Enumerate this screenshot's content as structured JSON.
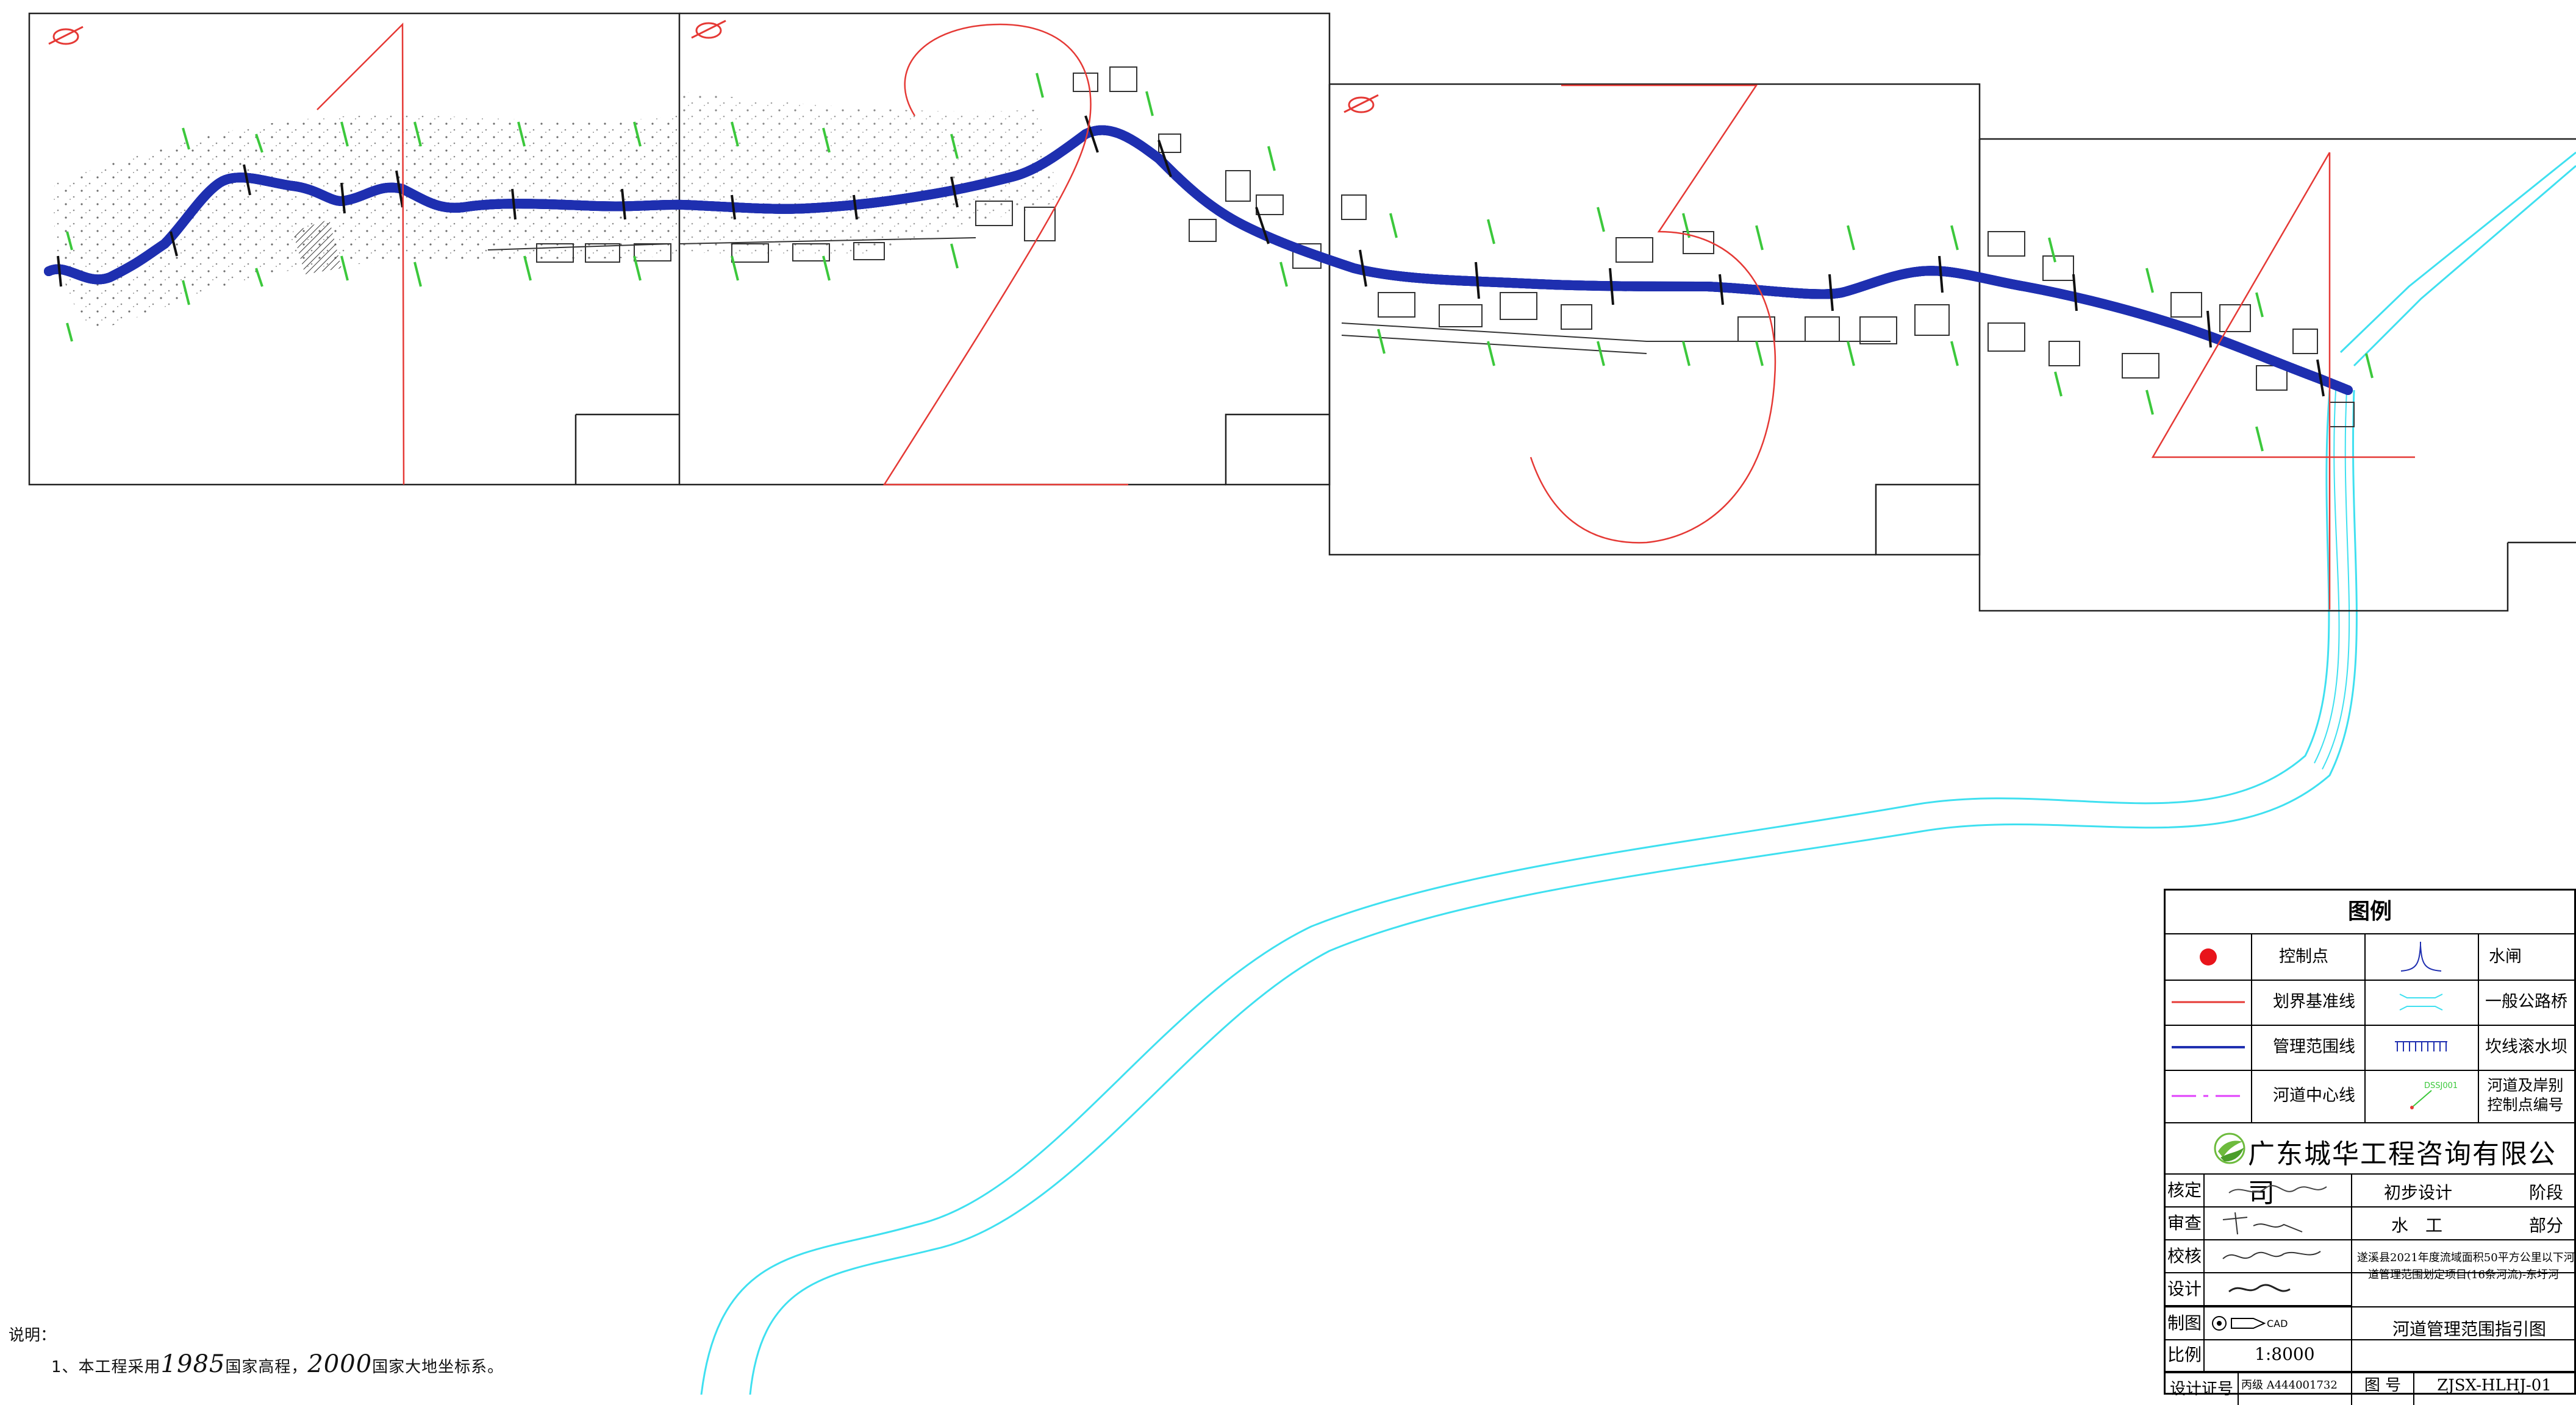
{
  "map": {
    "sheet_numbers": [
      "1",
      "2",
      "3",
      "4"
    ],
    "colors": {
      "boundary_red": "#e53935",
      "management_blue": "#1f2fb0",
      "centerline_magenta": "#e040fb",
      "river_cyan": "#3fe0f0",
      "control_green": "#3cc83c"
    }
  },
  "notes": {
    "heading": "说明：",
    "line_prefix": "1、本工程采用",
    "elev_year": "1985",
    "elev_text": "国家高程，",
    "coord_year": "2000",
    "coord_text": "国家大地坐标系。"
  },
  "legend": {
    "title": "图例",
    "items": [
      {
        "label": "控制点",
        "icon": "red-dot-icon"
      },
      {
        "label": "水闸",
        "icon": "sluice-gate-icon"
      },
      {
        "label": "划界基准线",
        "icon": "red-line-icon"
      },
      {
        "label": "一般公路桥",
        "icon": "highway-bridge-icon"
      },
      {
        "label": "管理范围线",
        "icon": "blue-line-icon"
      },
      {
        "label": "坎线滚水坝",
        "icon": "weir-icon"
      },
      {
        "label": "河道中心线",
        "icon": "magenta-dash-icon"
      },
      {
        "label_line1": "河道及岸别",
        "label_line2": "控制点编号",
        "icon": "control-point-number-icon",
        "sample_code": "DSSJ001"
      }
    ]
  },
  "title_block": {
    "company": "广东城华工程咨询有限公司",
    "rows": [
      {
        "label": "核定",
        "right_a": "初步设计",
        "right_b": "阶段"
      },
      {
        "label": "审查",
        "right_a": "水　工",
        "right_b": "部分"
      },
      {
        "label": "校核",
        "project_line1": "遂溪县2021年度流域面积50平方公里以下河",
        "project_line2": "道管理范围划定项目(16条河流)-东圩河"
      },
      {
        "label": "设计"
      },
      {
        "label": "制图",
        "drawing_tag": "CAD",
        "drawing_title": "河道管理范围指引图"
      },
      {
        "label": "比例",
        "scale": "1:8000"
      },
      {
        "label": "设计证号",
        "cert_grade": "丙级",
        "cert_no": "A444001732",
        "fig_label": "图 号",
        "fig_no": "ZJSX-HLHJ-01"
      }
    ]
  }
}
